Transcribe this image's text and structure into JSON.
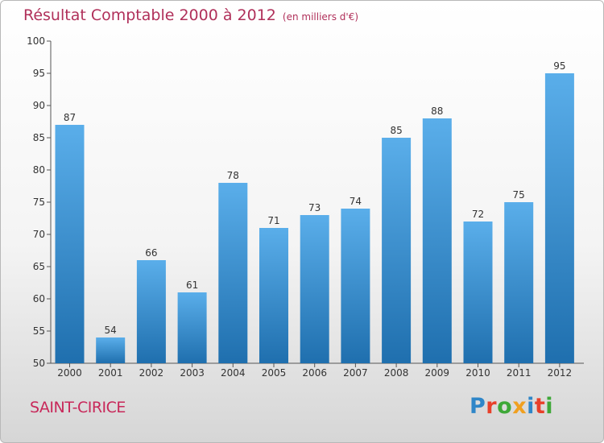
{
  "title": "Résultat Comptable 2000 à 2012",
  "title_unit": "(en milliers d'€)",
  "commune": "SAINT-CIRICE",
  "logo": {
    "text": "Proxiti",
    "colors": [
      "#2f86c8",
      "#e8402a",
      "#3ea838",
      "#f0a020",
      "#2f86c8",
      "#e8402a",
      "#3ea838"
    ]
  },
  "colors": {
    "bar_top": "#5aaeea",
    "bar_bottom": "#1f6fae",
    "title": "#b0305a",
    "commune": "#c8285a"
  },
  "chart_data": {
    "type": "bar",
    "categories": [
      "2000",
      "2001",
      "2002",
      "2003",
      "2004",
      "2005",
      "2006",
      "2007",
      "2008",
      "2009",
      "2010",
      "2011",
      "2012"
    ],
    "values": [
      87,
      54,
      66,
      61,
      78,
      71,
      73,
      74,
      85,
      88,
      72,
      75,
      95
    ],
    "ylim": [
      50,
      100
    ],
    "yticks": [
      50,
      55,
      60,
      65,
      70,
      75,
      80,
      85,
      90,
      95,
      100
    ],
    "grid": false,
    "data_labels": true
  }
}
